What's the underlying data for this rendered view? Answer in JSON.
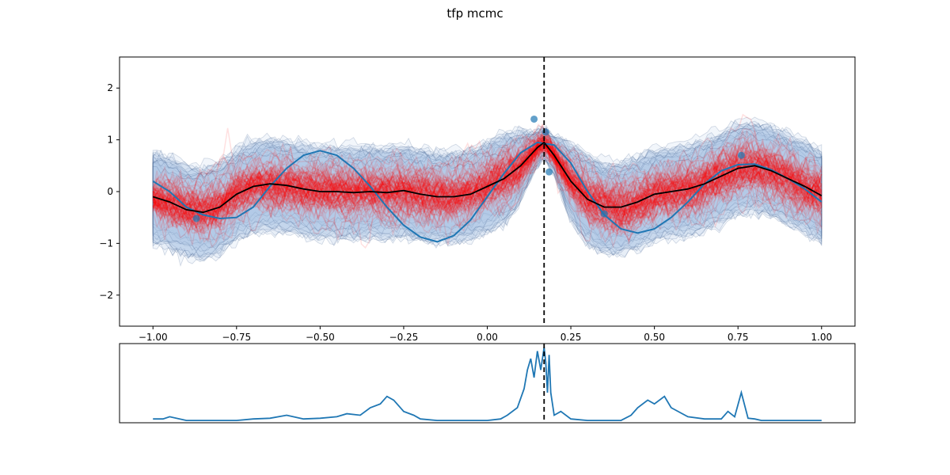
{
  "figure": {
    "title": "tfp mcmc"
  },
  "chart_data": [
    {
      "type": "line",
      "panel": "main",
      "xlim": [
        -1.1,
        1.1
      ],
      "ylim": [
        -2.6,
        2.6
      ],
      "xticks": [
        -1.0,
        -0.75,
        -0.5,
        -0.25,
        0.0,
        0.25,
        0.5,
        0.75,
        1.0
      ],
      "xtick_labels": [
        "−1.00",
        "−0.75",
        "−0.50",
        "−0.25",
        "0.00",
        "0.25",
        "0.50",
        "0.75",
        "1.00"
      ],
      "yticks": [
        -2,
        -1,
        0,
        1,
        2
      ],
      "ytick_labels": [
        "−2",
        "−1",
        "0",
        "1",
        "2"
      ],
      "vline_x": 0.17,
      "vline_style": "dashed",
      "true_function": {
        "color": "#1f77b4",
        "x": [
          -1.0,
          -0.95,
          -0.9,
          -0.85,
          -0.8,
          -0.75,
          -0.7,
          -0.65,
          -0.6,
          -0.55,
          -0.5,
          -0.45,
          -0.4,
          -0.35,
          -0.3,
          -0.25,
          -0.2,
          -0.15,
          -0.1,
          -0.05,
          0.0,
          0.05,
          0.1,
          0.15,
          0.2,
          0.25,
          0.3,
          0.35,
          0.4,
          0.45,
          0.5,
          0.55,
          0.6,
          0.65,
          0.7,
          0.75,
          0.8,
          0.85,
          0.9,
          0.95,
          1.0
        ],
        "y": [
          0.2,
          0.0,
          -0.3,
          -0.45,
          -0.52,
          -0.5,
          -0.3,
          0.1,
          0.45,
          0.7,
          0.79,
          0.7,
          0.45,
          0.1,
          -0.3,
          -0.65,
          -0.88,
          -0.97,
          -0.85,
          -0.55,
          -0.1,
          0.35,
          0.75,
          0.95,
          0.9,
          0.55,
          0.0,
          -0.45,
          -0.72,
          -0.8,
          -0.72,
          -0.5,
          -0.2,
          0.15,
          0.4,
          0.52,
          0.53,
          0.42,
          0.25,
          0.05,
          -0.2
        ]
      },
      "posterior_mean": {
        "color": "#000000",
        "x": [
          -1.0,
          -0.95,
          -0.9,
          -0.85,
          -0.8,
          -0.75,
          -0.7,
          -0.65,
          -0.6,
          -0.55,
          -0.5,
          -0.45,
          -0.4,
          -0.35,
          -0.3,
          -0.25,
          -0.2,
          -0.15,
          -0.1,
          -0.05,
          0.0,
          0.05,
          0.1,
          0.15,
          0.17,
          0.2,
          0.25,
          0.3,
          0.35,
          0.4,
          0.45,
          0.5,
          0.55,
          0.6,
          0.65,
          0.7,
          0.75,
          0.8,
          0.85,
          0.9,
          0.95,
          1.0
        ],
        "y": [
          -0.1,
          -0.2,
          -0.35,
          -0.4,
          -0.3,
          -0.05,
          0.1,
          0.15,
          0.12,
          0.05,
          0.0,
          0.0,
          -0.02,
          0.0,
          -0.02,
          0.02,
          -0.05,
          -0.1,
          -0.1,
          -0.05,
          0.1,
          0.25,
          0.5,
          0.85,
          0.95,
          0.7,
          0.2,
          -0.15,
          -0.3,
          -0.3,
          -0.2,
          -0.05,
          0.0,
          0.05,
          0.15,
          0.3,
          0.45,
          0.5,
          0.4,
          0.25,
          0.1,
          -0.08
        ]
      },
      "observations": {
        "x": [
          0.14,
          0.175,
          0.185,
          -0.87,
          0.35,
          0.76
        ],
        "y": [
          1.4,
          1.15,
          0.38,
          -0.52,
          -0.43,
          0.7
        ]
      },
      "samples_color": "#ff0000",
      "band_color": "#aec7e8"
    },
    {
      "type": "line",
      "panel": "acquisition",
      "color": "#1f77b4",
      "xlim": [
        -1.1,
        1.1
      ],
      "ylim": [
        0.0,
        1.05
      ],
      "vline_x": 0.17,
      "vline_style": "dashed",
      "x": [
        -1.0,
        -0.97,
        -0.95,
        -0.9,
        -0.85,
        -0.8,
        -0.75,
        -0.7,
        -0.65,
        -0.6,
        -0.55,
        -0.5,
        -0.45,
        -0.42,
        -0.38,
        -0.35,
        -0.32,
        -0.3,
        -0.28,
        -0.25,
        -0.22,
        -0.2,
        -0.15,
        -0.1,
        -0.05,
        0.0,
        0.04,
        0.06,
        0.09,
        0.11,
        0.12,
        0.13,
        0.14,
        0.15,
        0.16,
        0.17,
        0.175,
        0.18,
        0.185,
        0.19,
        0.2,
        0.22,
        0.25,
        0.3,
        0.35,
        0.4,
        0.43,
        0.45,
        0.48,
        0.5,
        0.53,
        0.55,
        0.6,
        0.65,
        0.7,
        0.72,
        0.74,
        0.76,
        0.78,
        0.8,
        0.82,
        0.85,
        0.9,
        0.95,
        1.0
      ],
      "y": [
        0.05,
        0.05,
        0.08,
        0.03,
        0.03,
        0.03,
        0.03,
        0.05,
        0.06,
        0.1,
        0.05,
        0.06,
        0.08,
        0.12,
        0.1,
        0.2,
        0.25,
        0.35,
        0.3,
        0.15,
        0.1,
        0.05,
        0.03,
        0.03,
        0.03,
        0.03,
        0.05,
        0.1,
        0.2,
        0.45,
        0.7,
        0.85,
        0.6,
        0.95,
        0.7,
        1.0,
        0.8,
        0.4,
        0.9,
        0.4,
        0.1,
        0.15,
        0.05,
        0.03,
        0.03,
        0.03,
        0.1,
        0.2,
        0.3,
        0.25,
        0.35,
        0.2,
        0.08,
        0.05,
        0.05,
        0.15,
        0.08,
        0.4,
        0.06,
        0.05,
        0.03,
        0.03,
        0.03,
        0.03,
        0.03
      ]
    }
  ]
}
